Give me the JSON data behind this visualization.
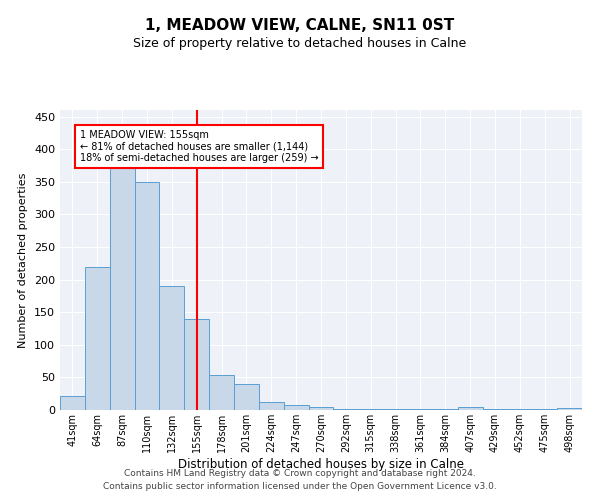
{
  "title": "1, MEADOW VIEW, CALNE, SN11 0ST",
  "subtitle": "Size of property relative to detached houses in Calne",
  "xlabel": "Distribution of detached houses by size in Calne",
  "ylabel": "Number of detached properties",
  "bar_labels": [
    "41sqm",
    "64sqm",
    "87sqm",
    "110sqm",
    "132sqm",
    "155sqm",
    "178sqm",
    "201sqm",
    "224sqm",
    "247sqm",
    "270sqm",
    "292sqm",
    "315sqm",
    "338sqm",
    "361sqm",
    "384sqm",
    "407sqm",
    "429sqm",
    "452sqm",
    "475sqm",
    "498sqm"
  ],
  "bar_values": [
    22,
    219,
    380,
    350,
    190,
    140,
    53,
    40,
    12,
    8,
    4,
    2,
    2,
    2,
    1,
    1,
    4,
    1,
    1,
    1,
    3
  ],
  "bar_color": "#c8d8e8",
  "bar_edge_color": "#5a9fd4",
  "annotation_text": "1 MEADOW VIEW: 155sqm\n← 81% of detached houses are smaller (1,144)\n18% of semi-detached houses are larger (259) →",
  "vline_x_index": 5,
  "vline_color": "red",
  "annotation_box_color": "red",
  "ylim": [
    0,
    460
  ],
  "yticks": [
    0,
    50,
    100,
    150,
    200,
    250,
    300,
    350,
    400,
    450
  ],
  "footer1": "Contains HM Land Registry data © Crown copyright and database right 2024.",
  "footer2": "Contains public sector information licensed under the Open Government Licence v3.0."
}
